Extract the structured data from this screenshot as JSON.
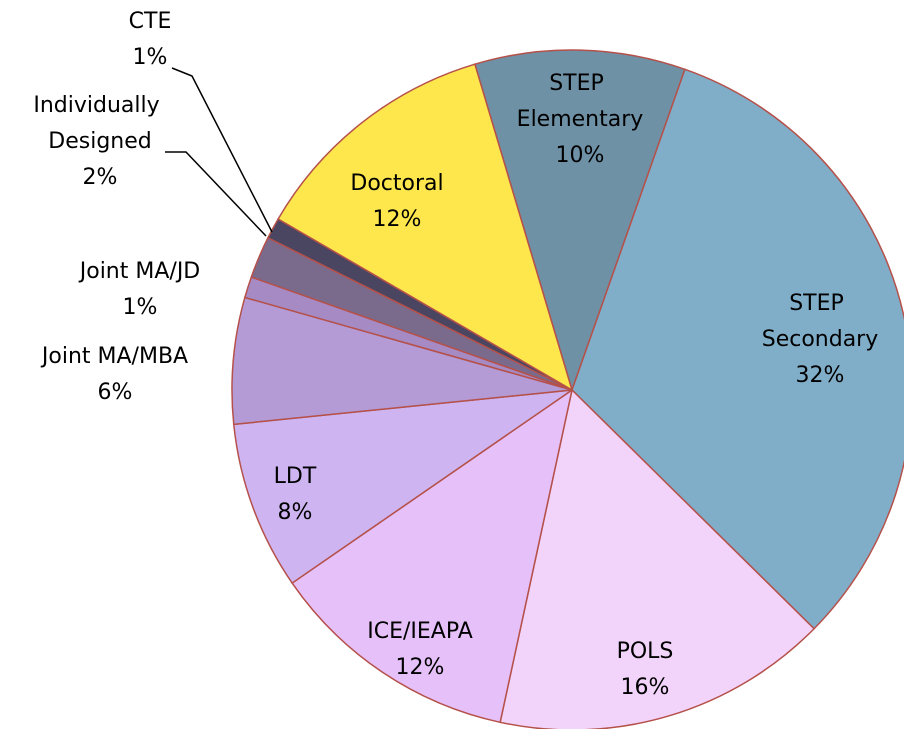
{
  "chart_data": {
    "type": "pie",
    "categories": [
      "STEP Elementary",
      "STEP Secondary",
      "POLS",
      "ICE/IEAPA",
      "LDT",
      "Joint MA/MBA",
      "Joint MA/JD",
      "Individually Designed",
      "CTE",
      "Doctoral"
    ],
    "values": [
      10,
      32,
      16,
      12,
      8,
      6,
      1,
      2,
      1,
      12
    ],
    "value_labels": [
      "10%",
      "32%",
      "16%",
      "12%",
      "8%",
      "6%",
      "1%",
      "2%",
      "1%",
      "12%"
    ],
    "colors": [
      "#6e91a6",
      "#80aec9",
      "#f2d4fb",
      "#e6c1f9",
      "#ceb5f1",
      "#b49bd5",
      "#a68ac3",
      "#7a6b8c",
      "#4a4560",
      "#fde74d"
    ]
  }
}
